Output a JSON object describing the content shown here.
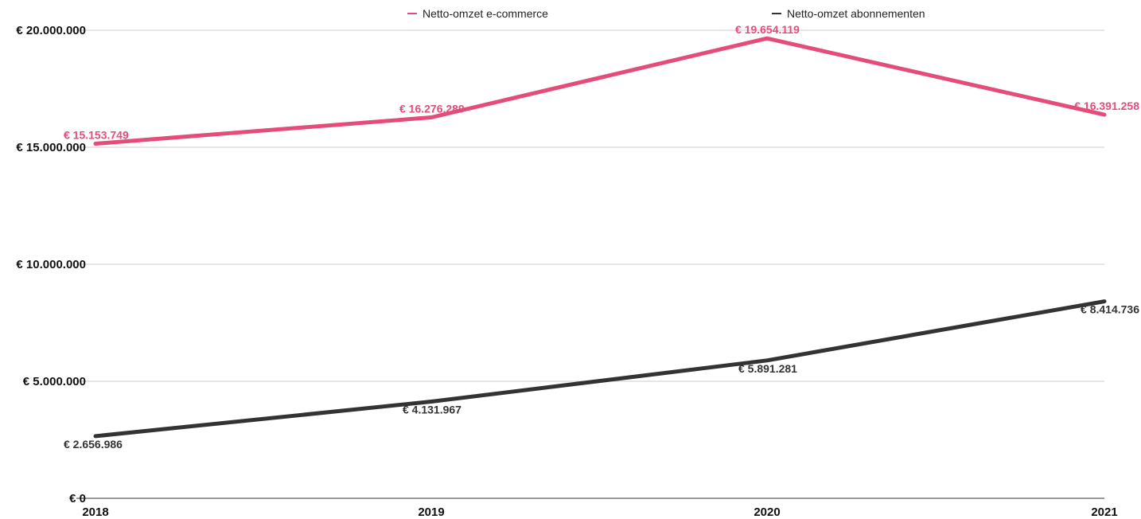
{
  "chart_data": {
    "type": "line",
    "categories": [
      "2018",
      "2019",
      "2020",
      "2021"
    ],
    "y_ticks": [
      0,
      5000000,
      10000000,
      15000000,
      20000000
    ],
    "y_tick_labels": [
      "€ 0",
      "€ 5.000.000",
      "€ 10.000.000",
      "€ 15.000.000",
      "€ 20.000.000"
    ],
    "ylim": [
      0,
      20000000
    ],
    "grid": true,
    "legend_position": "top",
    "series": [
      {
        "name": "Netto-omzet e-commerce",
        "color": "#e44d7a",
        "values": [
          15153749,
          16276289,
          19654119,
          16391258
        ],
        "labels": [
          "€ 15.153.749",
          "€ 16.276.289",
          "€ 19.654.119",
          "€ 16.391.258"
        ]
      },
      {
        "name": "Netto-omzet abonnementen",
        "color": "#333333",
        "values": [
          2656986,
          4131967,
          5891281,
          8414736
        ],
        "labels": [
          "€ 2.656.986",
          "€ 4.131.967",
          "€ 5.891.281",
          "€ 8.414.736"
        ]
      }
    ]
  }
}
